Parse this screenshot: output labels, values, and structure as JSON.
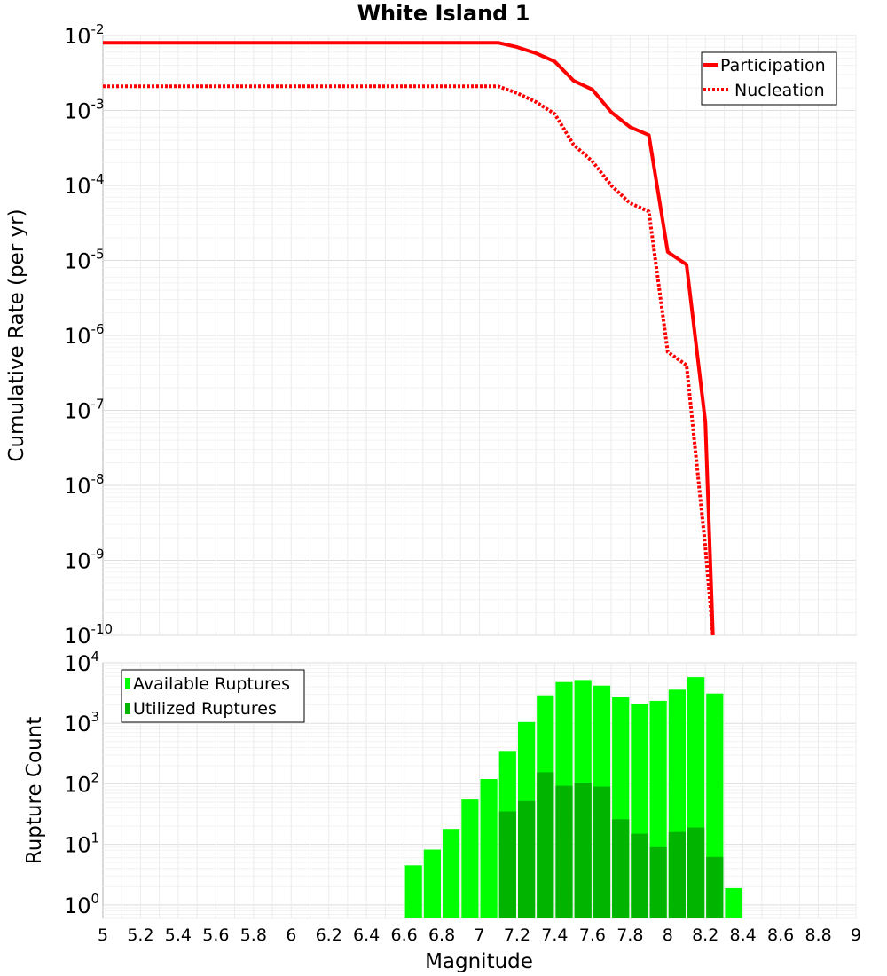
{
  "chart_data": [
    {
      "type": "line",
      "title": "White Island 1",
      "ylabel": "Cumulative Rate (per yr)",
      "yscale": "log",
      "ylim": [
        1e-10,
        0.01
      ],
      "xlim": [
        5,
        9
      ],
      "y_tick_labels": [
        {
          "base": "10",
          "exp": "-10"
        },
        {
          "base": "10",
          "exp": "-9"
        },
        {
          "base": "10",
          "exp": "-8"
        },
        {
          "base": "10",
          "exp": "-7"
        },
        {
          "base": "10",
          "exp": "-6"
        },
        {
          "base": "10",
          "exp": "-5"
        },
        {
          "base": "10",
          "exp": "-4"
        },
        {
          "base": "10",
          "exp": "-3"
        },
        {
          "base": "10",
          "exp": "-2"
        }
      ],
      "legend_position": "top-right",
      "grid": true,
      "series": [
        {
          "name": "Participation",
          "style": "solid",
          "color": "#ff0000",
          "x": [
            5.0,
            7.1,
            7.2,
            7.3,
            7.4,
            7.5,
            7.6,
            7.7,
            7.8,
            7.9,
            8.0,
            8.1,
            8.2,
            8.24
          ],
          "y": [
            0.008,
            0.008,
            0.007,
            0.0058,
            0.0045,
            0.0025,
            0.0019,
            0.00095,
            0.0006,
            0.00047,
            1.3e-05,
            8.8e-06,
            7e-08,
            1e-10
          ]
        },
        {
          "name": "Nucleation",
          "style": "dotted",
          "color": "#ff0000",
          "x": [
            5.0,
            7.1,
            7.2,
            7.3,
            7.4,
            7.5,
            7.6,
            7.7,
            7.8,
            7.9,
            8.0,
            8.1,
            8.2,
            8.24
          ],
          "y": [
            0.0021,
            0.0021,
            0.0017,
            0.0013,
            0.0009,
            0.00035,
            0.00021,
            0.0001,
            5.8e-05,
            4.5e-05,
            6e-07,
            4e-07,
            1.5e-09,
            1e-10
          ]
        }
      ]
    },
    {
      "type": "bar",
      "xlabel": "Magnitude",
      "ylabel": "Rupture Count",
      "yscale": "log",
      "ylim": [
        0.6,
        10000
      ],
      "xlim": [
        5,
        9
      ],
      "x_ticks": [
        "5",
        "5.2",
        "5.4",
        "5.6",
        "5.8",
        "6",
        "6.2",
        "6.4",
        "6.6",
        "6.8",
        "7",
        "7.2",
        "7.4",
        "7.6",
        "7.8",
        "8",
        "8.2",
        "8.4",
        "8.6",
        "8.8",
        "9"
      ],
      "y_tick_labels": [
        {
          "base": "10",
          "exp": "0"
        },
        {
          "base": "10",
          "exp": "1"
        },
        {
          "base": "10",
          "exp": "2"
        },
        {
          "base": "10",
          "exp": "3"
        },
        {
          "base": "10",
          "exp": "4"
        }
      ],
      "legend_position": "top-left",
      "grid": true,
      "bin_width": 0.1,
      "bin_centers": [
        6.65,
        6.75,
        6.85,
        6.95,
        7.05,
        7.15,
        7.25,
        7.35,
        7.45,
        7.55,
        7.65,
        7.75,
        7.85,
        7.95,
        8.05,
        8.15,
        8.25,
        8.35
      ],
      "series": [
        {
          "name": "Available Ruptures",
          "color": "#00ff00",
          "values": [
            4.5,
            8.2,
            18,
            55,
            120,
            350,
            1050,
            2900,
            4800,
            5200,
            4200,
            2700,
            2100,
            2350,
            3600,
            5800,
            3100,
            1.9
          ]
        },
        {
          "name": "Utilized Ruptures",
          "color": "#00b400",
          "values": [
            null,
            null,
            null,
            null,
            null,
            35,
            52,
            155,
            93,
            105,
            90,
            26,
            15,
            9,
            16,
            19,
            6.2,
            null
          ]
        }
      ]
    }
  ]
}
